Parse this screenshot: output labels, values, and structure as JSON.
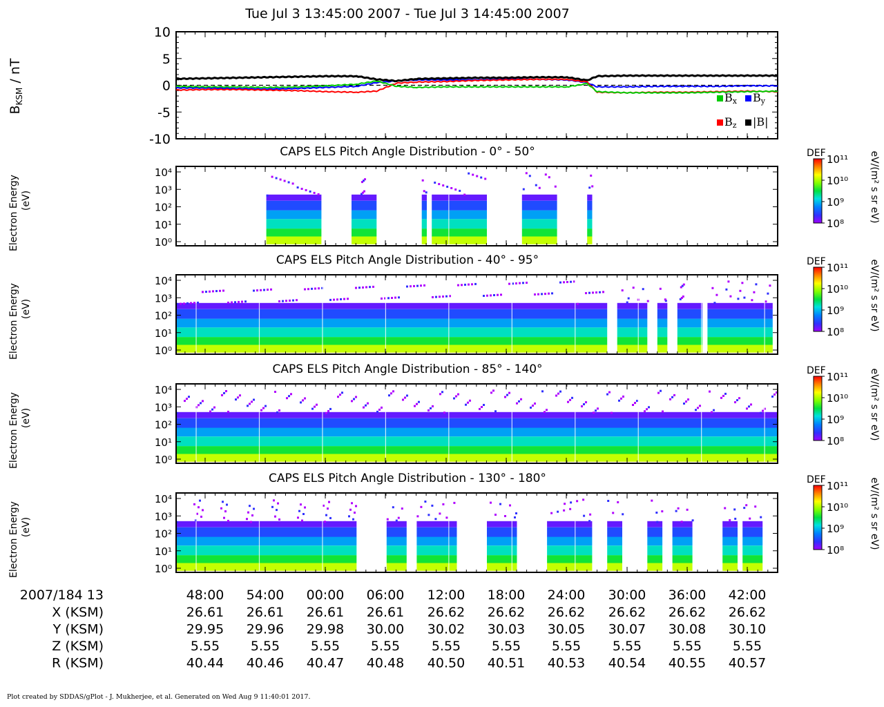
{
  "title": "Tue Jul 3 13:45:00 2007 - Tue Jul 3 14:45:00 2007",
  "footer": "Plot created by SDDAS/gPlot - J. Mukherjee, et al.  Generated on Wed Aug 9 11:40:01 2017.",
  "colors": {
    "bx": "#00cc00",
    "by": "#0000ff",
    "bz": "#ff0000",
    "btot": "#000000"
  },
  "chart_data": [
    {
      "type": "line",
      "ylabel_main": "B",
      "ylabel_sub": "KSM",
      "ylabel_unit": " / nT",
      "ylim": [
        -10,
        10
      ],
      "yticks": [
        "10",
        "5",
        "0",
        "-5",
        "-10"
      ],
      "x_minutes": [
        0,
        3,
        6,
        9,
        12,
        15,
        18,
        20,
        22,
        24,
        27,
        30,
        33,
        36,
        39,
        41,
        42,
        45,
        48,
        51,
        54,
        57,
        60
      ],
      "series": [
        {
          "name": "|B|",
          "values": [
            1.2,
            1.3,
            1.4,
            1.5,
            1.6,
            1.7,
            1.7,
            1.1,
            0.8,
            1.2,
            1.3,
            1.4,
            1.4,
            1.5,
            1.5,
            0.9,
            1.7,
            1.8,
            1.8,
            1.8,
            1.8,
            1.8,
            1.8
          ]
        },
        {
          "name": "Bx",
          "values": [
            -0.2,
            -0.3,
            -0.3,
            -0.4,
            -0.3,
            -0.1,
            0.2,
            0.8,
            -0.2,
            -0.4,
            -0.3,
            -0.3,
            -0.3,
            -0.3,
            -0.3,
            0.3,
            -1.2,
            -1.4,
            -1.4,
            -1.4,
            -1.3,
            -1.2,
            -1.1
          ]
        },
        {
          "name": "By",
          "values": [
            -0.5,
            -0.5,
            -0.6,
            -0.7,
            -0.6,
            -0.4,
            -0.2,
            0.5,
            0.8,
            1.0,
            1.0,
            1.0,
            1.1,
            1.1,
            1.0,
            0.5,
            -0.3,
            -0.3,
            -0.2,
            -0.2,
            -0.2,
            -0.1,
            -0.1
          ]
        },
        {
          "name": "Bz",
          "values": [
            -0.9,
            -0.8,
            -0.8,
            -0.9,
            -1.0,
            -1.2,
            -1.3,
            -1.1,
            0.4,
            0.6,
            0.7,
            0.9,
            1.0,
            1.1,
            1.1,
            0.6,
            -1.3,
            -1.4,
            -1.3,
            -1.3,
            -1.2,
            -1.1,
            -1.2
          ]
        }
      ],
      "legend": {
        "bx": "B",
        "bx_sub": "x",
        "by": "B",
        "by_sub": "y",
        "bz": "B",
        "bz_sub": "z",
        "btot": "|B|"
      }
    },
    {
      "type": "heatmap",
      "title": "CAPS ELS Pitch Angle Distribution - 0° - 50°",
      "ylabel": "Electron Energy",
      "yunit": "(eV)",
      "colorbar_label": "DEF",
      "colorbar_unit": "eV/(m² s sr eV)",
      "colorbar_ticks": [
        "10¹¹",
        "10¹⁰",
        "10⁹",
        "10⁸"
      ],
      "yticks": [
        "10⁴",
        "10³",
        "10²",
        "10¹",
        "10⁰"
      ],
      "coverage_minutes": [
        [
          9,
          14.5
        ],
        [
          17.5,
          20
        ],
        [
          24.5,
          25
        ],
        [
          25.5,
          31
        ],
        [
          34.5,
          38
        ],
        [
          41,
          41.5
        ]
      ]
    },
    {
      "type": "heatmap",
      "title": "CAPS ELS Pitch Angle Distribution - 40° - 95°",
      "ylabel": "Electron Energy",
      "yunit": "(eV)",
      "colorbar_label": "DEF",
      "colorbar_unit": "eV/(m² s sr eV)",
      "colorbar_ticks": [
        "10¹¹",
        "10¹⁰",
        "10⁹",
        "10⁸"
      ],
      "yticks": [
        "10⁴",
        "10³",
        "10²",
        "10¹",
        "10⁰"
      ],
      "coverage_minutes": [
        [
          0,
          43
        ],
        [
          44,
          47
        ],
        [
          48,
          49
        ],
        [
          50,
          52.5
        ],
        [
          53,
          59.5
        ]
      ]
    },
    {
      "type": "heatmap",
      "title": "CAPS ELS Pitch Angle Distribution - 85° - 140°",
      "ylabel": "Electron Energy",
      "yunit": "(eV)",
      "colorbar_label": "DEF",
      "colorbar_unit": "eV/(m² s sr eV)",
      "colorbar_ticks": [
        "10¹¹",
        "10¹⁰",
        "10⁹",
        "10⁸"
      ],
      "yticks": [
        "10⁴",
        "10³",
        "10²",
        "10¹",
        "10⁰"
      ],
      "coverage_minutes": [
        [
          0,
          60
        ]
      ]
    },
    {
      "type": "heatmap",
      "title": "CAPS ELS Pitch Angle Distribution - 130° - 180°",
      "ylabel": "Electron Energy",
      "yunit": "(eV)",
      "colorbar_label": "DEF",
      "colorbar_unit": "eV/(m² s sr eV)",
      "colorbar_ticks": [
        "10¹¹",
        "10¹⁰",
        "10⁹",
        "10⁸"
      ],
      "yticks": [
        "10⁴",
        "10³",
        "10²",
        "10¹",
        "10⁰"
      ],
      "coverage_minutes": [
        [
          0,
          18
        ],
        [
          21,
          23
        ],
        [
          24,
          28
        ],
        [
          31,
          34
        ],
        [
          37,
          41.5
        ],
        [
          43,
          44.5
        ],
        [
          47,
          48.5
        ],
        [
          49.5,
          51.5
        ],
        [
          54.5,
          56
        ],
        [
          56.5,
          58.5
        ]
      ]
    }
  ],
  "xaxis": {
    "date_label": "2007/184 13",
    "ticks": [
      "48:00",
      "54:00",
      "00:00",
      "06:00",
      "12:00",
      "18:00",
      "24:00",
      "30:00",
      "36:00",
      "42:00"
    ],
    "rows": [
      {
        "label": "X (KSM)",
        "values": [
          "26.61",
          "26.61",
          "26.61",
          "26.61",
          "26.62",
          "26.62",
          "26.62",
          "26.62",
          "26.62",
          "26.62"
        ]
      },
      {
        "label": "Y (KSM)",
        "values": [
          "29.95",
          "29.96",
          "29.98",
          "30.00",
          "30.02",
          "30.03",
          "30.05",
          "30.07",
          "30.08",
          "30.10"
        ]
      },
      {
        "label": "Z (KSM)",
        "values": [
          "5.55",
          "5.55",
          "5.55",
          "5.55",
          "5.55",
          "5.55",
          "5.55",
          "5.55",
          "5.55",
          "5.55"
        ]
      },
      {
        "label": "R (KSM)",
        "values": [
          "40.44",
          "40.46",
          "40.47",
          "40.48",
          "40.50",
          "40.51",
          "40.53",
          "40.54",
          "40.55",
          "40.57"
        ]
      }
    ]
  }
}
